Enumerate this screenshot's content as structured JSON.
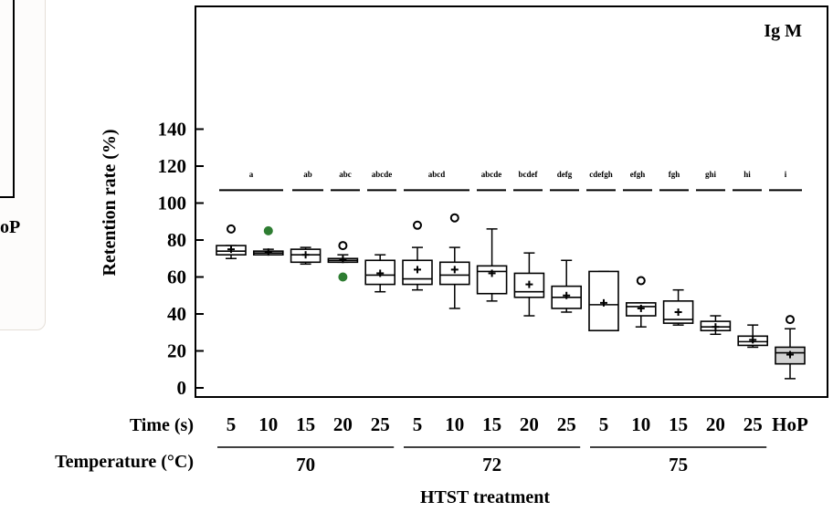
{
  "crop": {
    "partial_label": "oP"
  },
  "chart_data": {
    "type": "box",
    "panel_label": "Ig M",
    "ylabel": "Retention rate (%)",
    "ylim": [
      0,
      140
    ],
    "yticks": [
      0,
      20,
      40,
      60,
      80,
      100,
      120,
      140
    ],
    "xlabel": "HTST treatment",
    "time_row_label": "Time (s)",
    "temperature_row_label": "Temperature (°C)",
    "temperature_groups": [
      {
        "label": "70",
        "members": [
          0,
          4
        ]
      },
      {
        "label": "72",
        "members": [
          5,
          9
        ]
      },
      {
        "label": "75",
        "members": [
          10,
          14
        ]
      }
    ],
    "boxes": [
      {
        "time": "5",
        "temp": "70",
        "group": "a",
        "whisker_low": 70,
        "q1": 72,
        "median": 74,
        "q3": 77,
        "whisker_high": 77,
        "mean": 75,
        "outliers": [
          {
            "y": 86,
            "style": "open"
          }
        ]
      },
      {
        "time": "10",
        "temp": "70",
        "group": "ab",
        "whisker_low": 72,
        "q1": 72,
        "median": 73,
        "q3": 74,
        "whisker_high": 75,
        "mean": 73.5,
        "outliers": [
          {
            "y": 85,
            "style": "filled"
          }
        ]
      },
      {
        "time": "15",
        "temp": "70",
        "group": "abc",
        "whisker_low": 67,
        "q1": 68,
        "median": 72,
        "q3": 75,
        "whisker_high": 76,
        "mean": 72,
        "outliers": []
      },
      {
        "time": "20",
        "temp": "70",
        "group": "abcde",
        "whisker_low": 68,
        "q1": 68,
        "median": 69,
        "q3": 70,
        "whisker_high": 72,
        "mean": 69.5,
        "outliers": [
          {
            "y": 77,
            "style": "open"
          },
          {
            "y": 60,
            "style": "filled"
          }
        ]
      },
      {
        "time": "25",
        "temp": "70",
        "group": "abcd",
        "whisker_low": 52,
        "q1": 56,
        "median": 61,
        "q3": 69,
        "whisker_high": 72,
        "mean": 62,
        "outliers": []
      },
      {
        "time": "5",
        "temp": "72",
        "group": "abcde",
        "whisker_low": 53,
        "q1": 56,
        "median": 59,
        "q3": 69,
        "whisker_high": 76,
        "mean": 64,
        "outliers": [
          {
            "y": 88,
            "style": "open"
          }
        ]
      },
      {
        "time": "10",
        "temp": "72",
        "group": "bcdef",
        "whisker_low": 43,
        "q1": 56,
        "median": 61,
        "q3": 68,
        "whisker_high": 76,
        "mean": 64,
        "outliers": [
          {
            "y": 92,
            "style": "open"
          }
        ]
      },
      {
        "time": "15",
        "temp": "72",
        "group": "defg",
        "whisker_low": 47,
        "q1": 51,
        "median": 63,
        "q3": 66,
        "whisker_high": 86,
        "mean": 62,
        "outliers": []
      },
      {
        "time": "20",
        "temp": "72",
        "group": "cdefgh",
        "whisker_low": 39,
        "q1": 49,
        "median": 52,
        "q3": 62,
        "whisker_high": 73,
        "mean": 56,
        "outliers": []
      },
      {
        "time": "25",
        "temp": "72",
        "group": "efgh",
        "whisker_low": 41,
        "q1": 43,
        "median": 49,
        "q3": 55,
        "whisker_high": 69,
        "mean": 50,
        "outliers": []
      },
      {
        "time": "5",
        "temp": "75",
        "group": "fgh",
        "whisker_low": 31,
        "q1": 31,
        "median": 45,
        "q3": 63,
        "whisker_high": 63,
        "mean": 46,
        "outliers": []
      },
      {
        "time": "10",
        "temp": "75",
        "group": "ghi",
        "whisker_low": 33,
        "q1": 39,
        "median": 44,
        "q3": 46,
        "whisker_high": 46,
        "mean": 43,
        "outliers": [
          {
            "y": 58,
            "style": "open"
          }
        ]
      },
      {
        "time": "15",
        "temp": "75",
        "group": "hi",
        "whisker_low": 34,
        "q1": 35,
        "median": 37,
        "q3": 47,
        "whisker_high": 53,
        "mean": 41,
        "outliers": []
      },
      {
        "time": "20",
        "temp": "75",
        "group": "i",
        "whisker_low": 29,
        "q1": 31,
        "median": 33,
        "q3": 36,
        "whisker_high": 39,
        "mean": 33,
        "outliers": []
      },
      {
        "time": "25",
        "temp": "75",
        "group": "",
        "whisker_low": 22,
        "q1": 23,
        "median": 25,
        "q3": 28,
        "whisker_high": 34,
        "mean": 26,
        "outliers": []
      },
      {
        "time": "HoP",
        "temp": "",
        "group": "",
        "whisker_low": 5,
        "q1": 13,
        "median": 19,
        "q3": 22,
        "whisker_high": 32,
        "mean": 18,
        "outliers": [
          {
            "y": 37,
            "style": "open"
          }
        ],
        "fill": "#d3d3d3"
      }
    ],
    "significance_letters": [
      "a",
      "ab",
      "abc",
      "abcde",
      "abcd",
      "abcde",
      "bcdef",
      "defg",
      "cdefgh",
      "efgh",
      "fgh",
      "ghi",
      "hi",
      "i"
    ],
    "significance_line_y": 107,
    "letters_y": 114,
    "colors": {
      "box_stroke": "#000000",
      "box_fill": "#ffffff",
      "filled_outlier": "#2e7d32",
      "hop_fill": "#d3d3d3"
    }
  }
}
